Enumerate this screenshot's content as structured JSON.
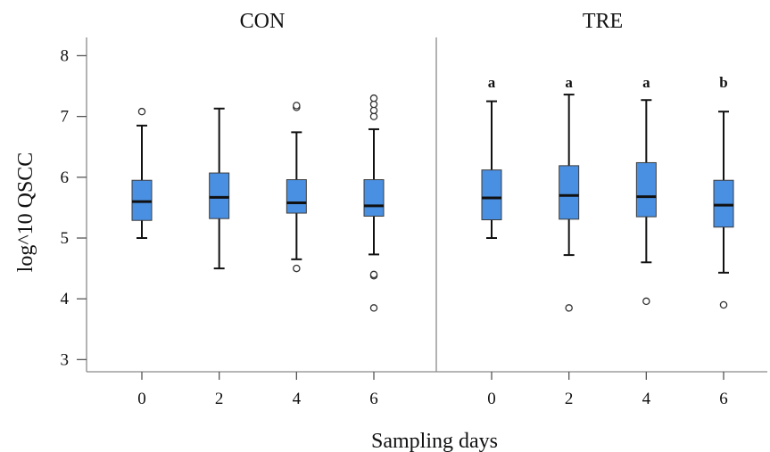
{
  "chart_data": {
    "type": "boxplot",
    "ylabel": "log^10 QSCC",
    "xlabel": "Sampling days",
    "ylim": [
      2.8,
      8.3
    ],
    "yticks": [
      "3",
      "4",
      "5",
      "6",
      "7",
      "8"
    ],
    "categories": [
      "0",
      "2",
      "4",
      "6"
    ],
    "box_color": "#4a90e2",
    "grid": false,
    "panels": [
      {
        "title": "CON",
        "boxes": [
          {
            "day": "0",
            "whisker_low": 5.0,
            "q1": 5.29,
            "median": 5.6,
            "q3": 5.95,
            "whisker_high": 6.85,
            "outliers": [
              7.08
            ],
            "letter": ""
          },
          {
            "day": "2",
            "whisker_low": 4.5,
            "q1": 5.32,
            "median": 5.67,
            "q3": 6.07,
            "whisker_high": 7.13,
            "outliers": [],
            "letter": ""
          },
          {
            "day": "4",
            "whisker_low": 4.65,
            "q1": 5.41,
            "median": 5.58,
            "q3": 5.96,
            "whisker_high": 6.74,
            "outliers": [
              4.5,
              7.15,
              7.18
            ],
            "letter": ""
          },
          {
            "day": "6",
            "whisker_low": 4.73,
            "q1": 5.36,
            "median": 5.53,
            "q3": 5.96,
            "whisker_high": 6.79,
            "outliers": [
              3.85,
              4.38,
              4.4,
              7.0,
              7.1,
              7.2,
              7.3
            ],
            "letter": ""
          }
        ]
      },
      {
        "title": "TRE",
        "boxes": [
          {
            "day": "0",
            "whisker_low": 5.0,
            "q1": 5.3,
            "median": 5.66,
            "q3": 6.12,
            "whisker_high": 7.25,
            "outliers": [],
            "letter": "a"
          },
          {
            "day": "2",
            "whisker_low": 4.72,
            "q1": 5.31,
            "median": 5.7,
            "q3": 6.19,
            "whisker_high": 7.36,
            "outliers": [
              3.85
            ],
            "letter": "a"
          },
          {
            "day": "4",
            "whisker_low": 4.6,
            "q1": 5.35,
            "median": 5.68,
            "q3": 6.24,
            "whisker_high": 7.27,
            "outliers": [
              3.96
            ],
            "letter": "a"
          },
          {
            "day": "6",
            "whisker_low": 4.43,
            "q1": 5.18,
            "median": 5.54,
            "q3": 5.95,
            "whisker_high": 7.08,
            "outliers": [
              3.9
            ],
            "letter": "b"
          }
        ]
      }
    ]
  }
}
